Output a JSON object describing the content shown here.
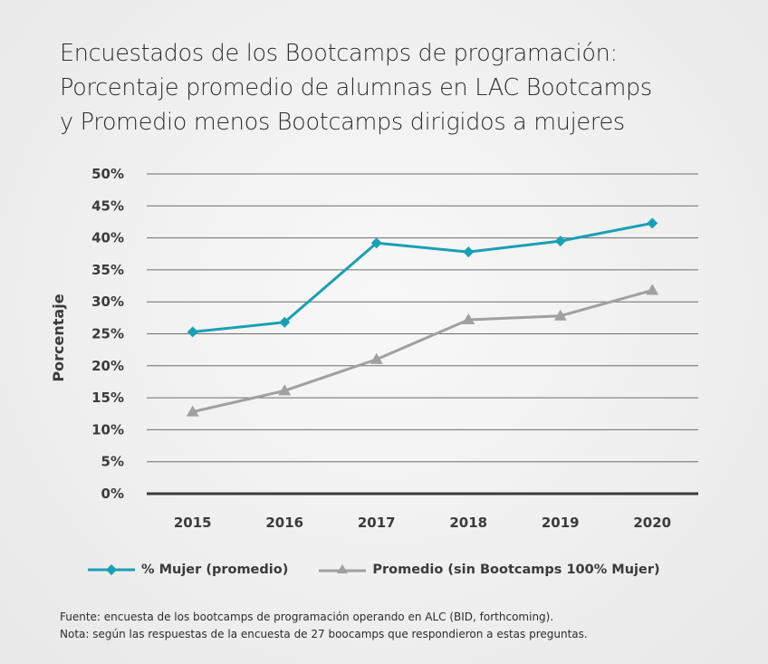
{
  "chart_data": {
    "type": "line",
    "title_lines": [
      "Encuestados de los Bootcamps de programación:",
      "Porcentaje promedio de alumnas en LAC Bootcamps",
      "y Promedio menos Bootcamps dirigidos a mujeres"
    ],
    "xlabel": "",
    "ylabel": "Porcentaje",
    "categories": [
      "2015",
      "2016",
      "2017",
      "2018",
      "2019",
      "2020"
    ],
    "ylim": [
      0,
      50
    ],
    "yticks": [
      0,
      5,
      10,
      15,
      20,
      25,
      30,
      35,
      40,
      45,
      50
    ],
    "ytick_labels": [
      "0%",
      "5%",
      "10%",
      "15%",
      "20%",
      "25%",
      "30%",
      "35%",
      "40%",
      "45%",
      "50%"
    ],
    "grid": true,
    "legend_position": "bottom",
    "series": [
      {
        "name": "% Mujer (promedio)",
        "marker": "diamond",
        "color": "#1a9fb5",
        "values": [
          25.3,
          26.8,
          39.2,
          37.8,
          39.5,
          42.3
        ]
      },
      {
        "name": "Promedio (sin Bootcamps 100% Mujer)",
        "marker": "triangle",
        "color": "#a0a0a2",
        "values": [
          12.8,
          16.1,
          21.0,
          27.2,
          27.8,
          31.8
        ]
      }
    ]
  },
  "footer": {
    "source": "Fuente: encuesta de los bootcamps de programación operando en ALC (BID, forthcoming).",
    "note": "Nota: según las respuestas de la encuesta de 27 boocamps que respondieron a estas preguntas."
  }
}
